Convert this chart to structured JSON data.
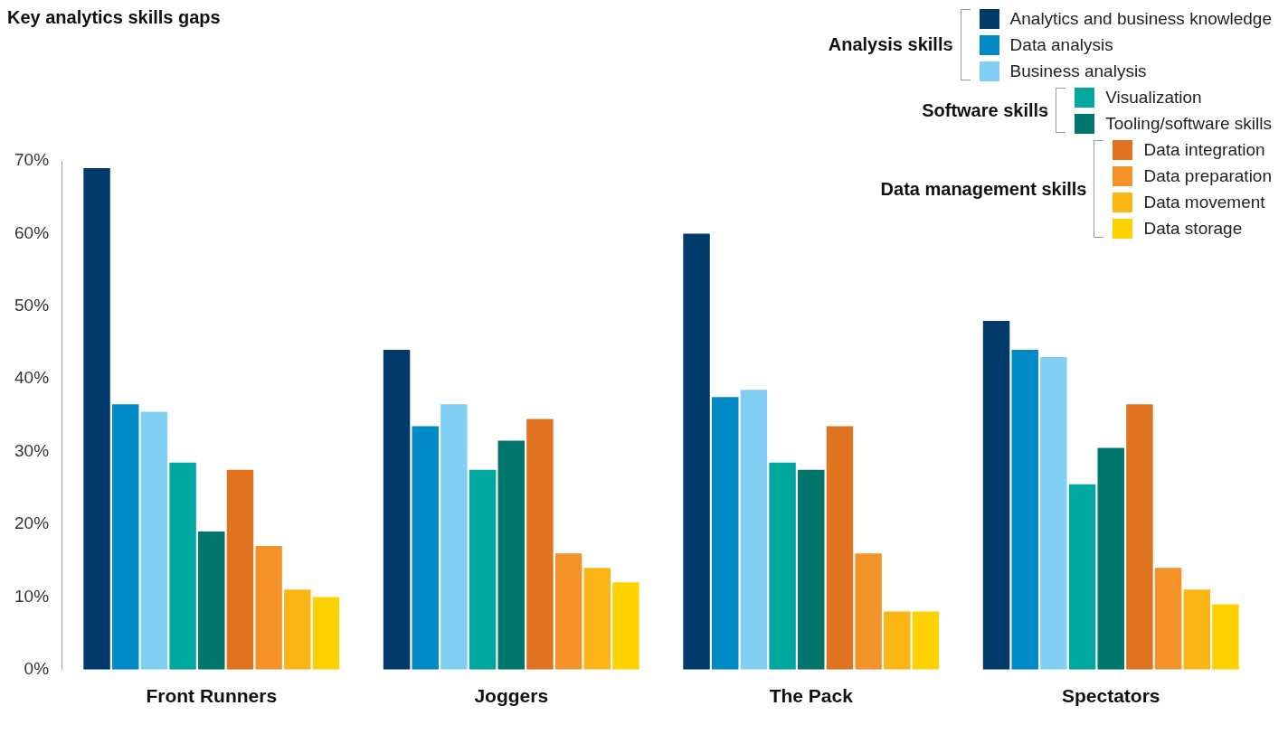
{
  "chart_data": {
    "type": "bar",
    "title": "Key analytics skills gaps",
    "categories": [
      "Front Runners",
      "Joggers",
      "The Pack",
      "Spectators"
    ],
    "series": [
      {
        "name": "Analytics and business knowledge",
        "color": "#003a6a",
        "values": [
          69,
          44,
          60,
          48
        ]
      },
      {
        "name": "Data analysis",
        "color": "#008bc7",
        "values": [
          36.5,
          33.5,
          37.5,
          44
        ]
      },
      {
        "name": "Business analysis",
        "color": "#82cff4",
        "values": [
          35.5,
          36.5,
          38.5,
          43
        ]
      },
      {
        "name": "Visualization",
        "color": "#00a79e",
        "values": [
          28.5,
          27.5,
          28.5,
          25.5
        ]
      },
      {
        "name": "Tooling/software skills",
        "color": "#00766c",
        "values": [
          19,
          31.5,
          27.5,
          30.5
        ]
      },
      {
        "name": "Data integration",
        "color": "#e07320",
        "values": [
          27.5,
          34.5,
          33.5,
          36.5
        ]
      },
      {
        "name": "Data preparation",
        "color": "#f29229",
        "values": [
          17,
          16,
          16,
          14
        ]
      },
      {
        "name": "Data movement",
        "color": "#fbb615",
        "values": [
          11,
          14,
          8,
          11
        ]
      },
      {
        "name": "Data storage",
        "color": "#fed100",
        "values": [
          10,
          12,
          8,
          9
        ]
      }
    ],
    "annotations": [
      "Analysis skills",
      "Software skills",
      "Data management skills"
    ],
    "ylim": [
      0,
      70
    ],
    "yticks": [
      {
        "value": 0,
        "label": "0%"
      },
      {
        "value": 10,
        "label": "10%"
      },
      {
        "value": 20,
        "label": "20%"
      },
      {
        "value": 30,
        "label": "30%"
      },
      {
        "value": 40,
        "label": "40%"
      },
      {
        "value": 50,
        "label": "50%"
      },
      {
        "value": 60,
        "label": "60%"
      },
      {
        "value": 70,
        "label": "70%"
      }
    ],
    "grid": false,
    "legend": "top right"
  }
}
